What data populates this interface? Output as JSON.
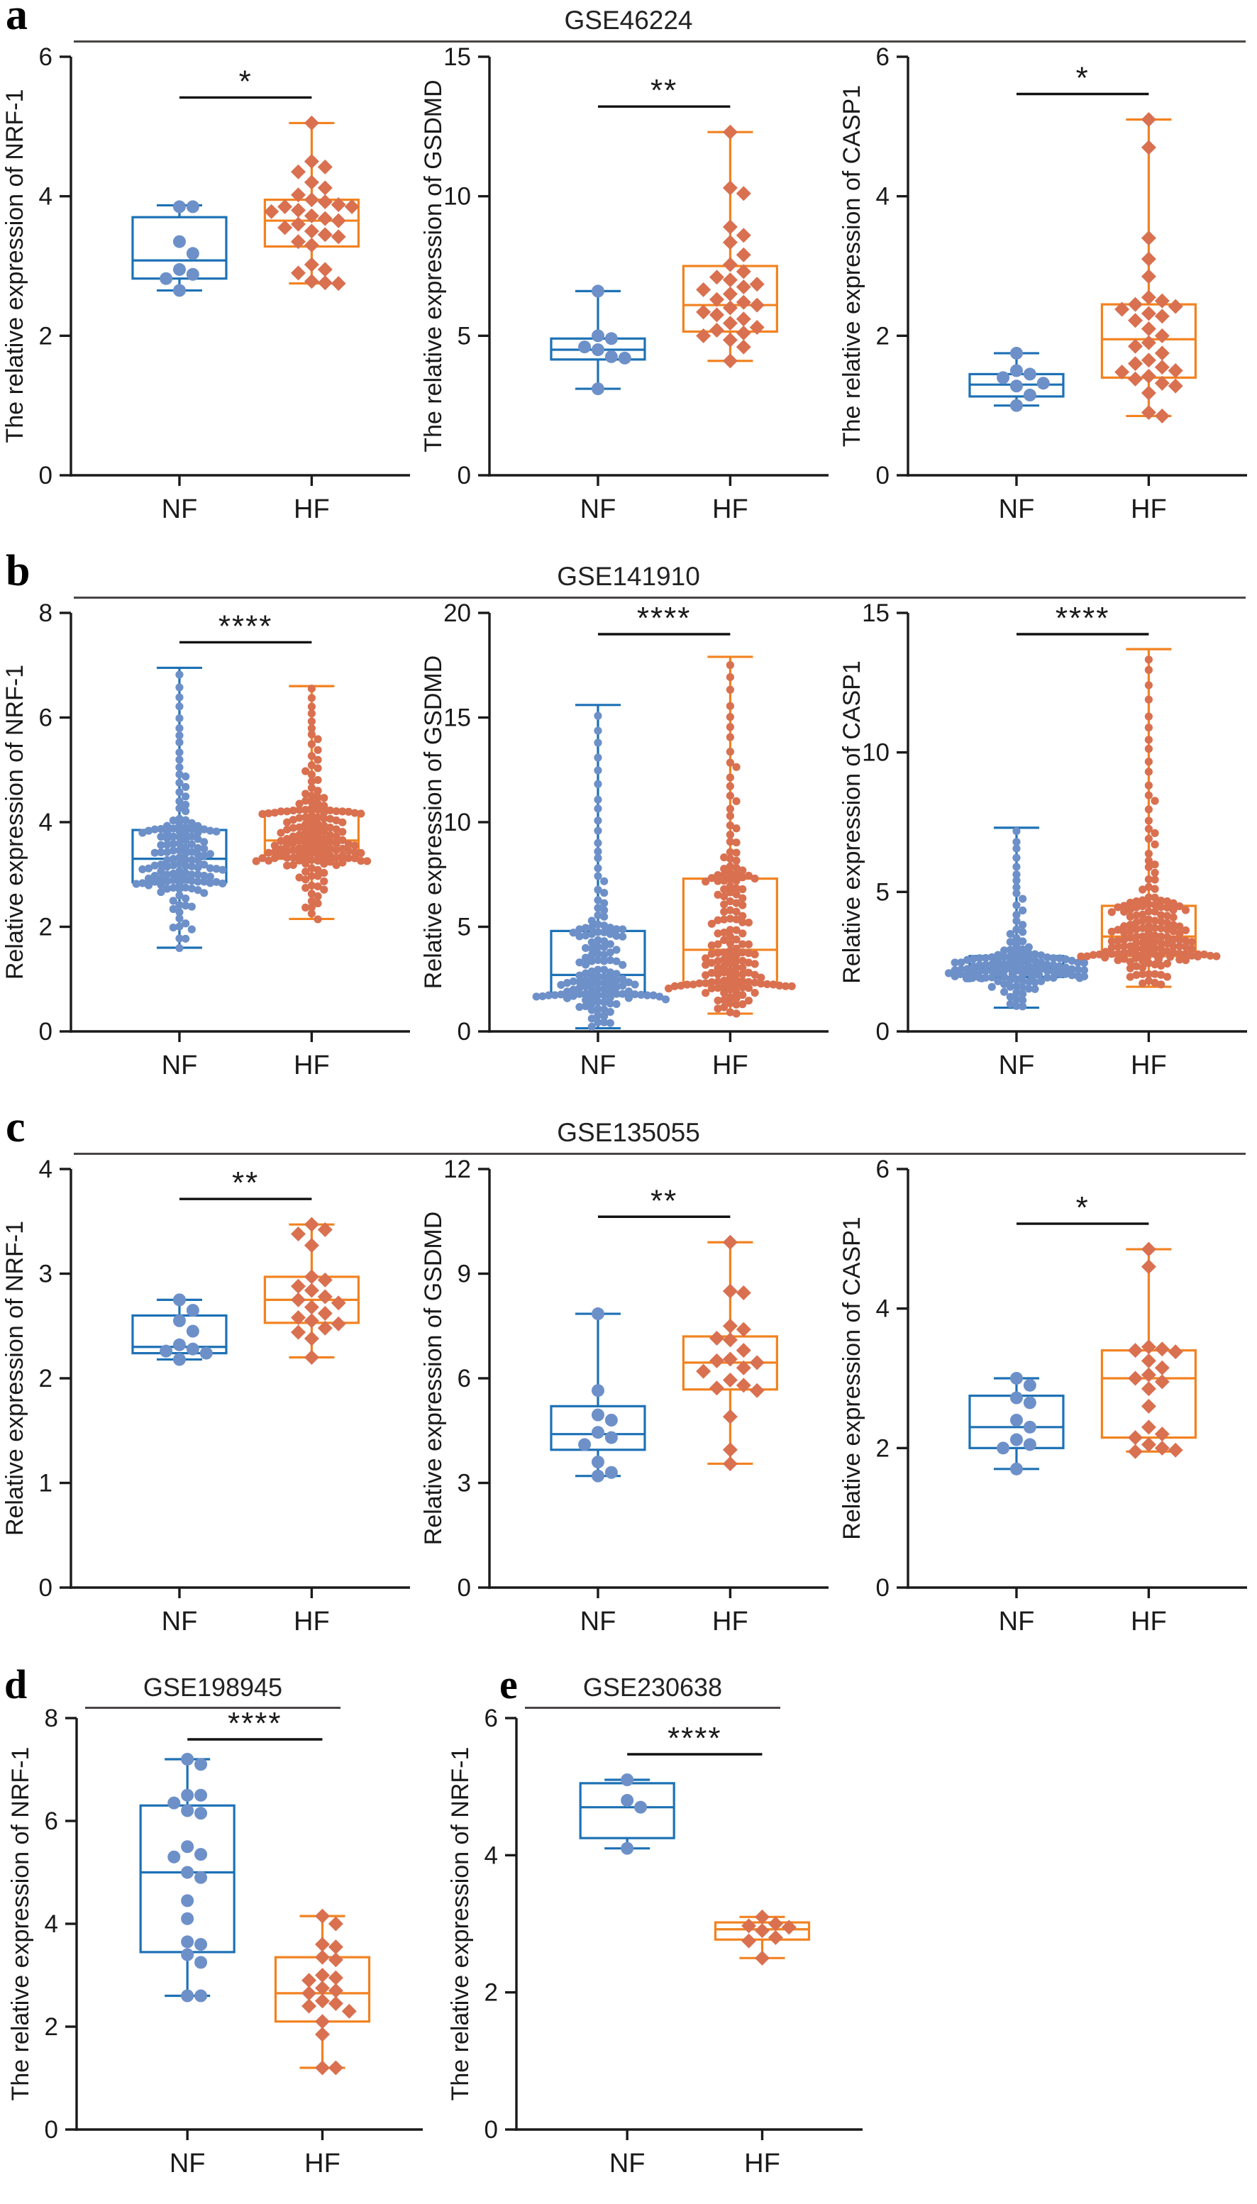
{
  "style": {
    "nf_color": "#1d71b5",
    "nf_point_color": "#6d90c9",
    "hf_color": "#f28220",
    "hf_point_color": "#d97050",
    "axis_color": "#1a1a1a",
    "rule_color": "#4a4545"
  },
  "chart_data": [
    {
      "panel": "a",
      "title": "GSE46224",
      "type": "box",
      "charts": [
        {
          "ylabel": "The relative expression of NRF-1",
          "ylim": [
            0,
            6
          ],
          "yticks": [
            0,
            2,
            4,
            6
          ],
          "significance": "*",
          "categories": [
            "NF",
            "HF"
          ],
          "groups": [
            {
              "name": "NF",
              "marker": "circle",
              "box": [
                2.65,
                2.82,
                3.08,
                3.7,
                3.87
              ],
              "points": [
                3.85,
                3.85,
                3.35,
                3.18,
                2.95,
                2.88,
                2.82,
                2.65
              ]
            },
            {
              "name": "HF",
              "marker": "diamond",
              "box": [
                2.75,
                3.28,
                3.65,
                3.95,
                5.05
              ],
              "points": [
                5.05,
                4.5,
                4.42,
                4.35,
                4.2,
                4.12,
                4.02,
                3.95,
                3.92,
                3.88,
                3.85,
                3.85,
                3.8,
                3.78,
                3.72,
                3.68,
                3.65,
                3.6,
                3.55,
                3.5,
                3.45,
                3.42,
                3.35,
                3.3,
                3.02,
                2.95,
                2.9,
                2.78,
                2.76,
                2.75
              ]
            }
          ]
        },
        {
          "ylabel": "The relative expression of GSDMD",
          "ylim": [
            0,
            15
          ],
          "yticks": [
            0,
            5,
            10,
            15
          ],
          "significance": "**",
          "categories": [
            "NF",
            "HF"
          ],
          "groups": [
            {
              "name": "NF",
              "marker": "circle",
              "box": [
                3.1,
                4.15,
                4.5,
                4.9,
                6.6
              ],
              "points": [
                6.6,
                5.0,
                4.9,
                4.6,
                4.5,
                4.25,
                4.2,
                3.1
              ]
            },
            {
              "name": "HF",
              "marker": "diamond",
              "box": [
                4.1,
                5.15,
                6.1,
                7.5,
                12.3
              ],
              "points": [
                12.3,
                10.3,
                10.1,
                8.9,
                8.6,
                8.35,
                7.9,
                7.55,
                7.3,
                7.1,
                7.0,
                6.85,
                6.75,
                6.65,
                6.5,
                6.3,
                6.2,
                6.1,
                6.0,
                5.85,
                5.75,
                5.6,
                5.45,
                5.3,
                5.2,
                5.1,
                5.0,
                4.85,
                4.6,
                4.1
              ]
            }
          ]
        },
        {
          "ylabel": "The relative expression of CASP1",
          "ylim": [
            0,
            6
          ],
          "yticks": [
            0,
            2,
            4,
            6
          ],
          "significance": "*",
          "categories": [
            "NF",
            "HF"
          ],
          "groups": [
            {
              "name": "NF",
              "marker": "circle",
              "box": [
                1.0,
                1.13,
                1.3,
                1.45,
                1.75
              ],
              "points": [
                1.75,
                1.5,
                1.45,
                1.4,
                1.32,
                1.28,
                1.15,
                1.0
              ]
            },
            {
              "name": "HF",
              "marker": "diamond",
              "box": [
                0.85,
                1.4,
                1.95,
                2.45,
                5.1
              ],
              "points": [
                5.1,
                4.7,
                3.4,
                3.1,
                2.85,
                2.55,
                2.5,
                2.45,
                2.42,
                2.38,
                2.32,
                2.28,
                2.22,
                2.1,
                2.0,
                1.9,
                1.85,
                1.75,
                1.65,
                1.6,
                1.55,
                1.5,
                1.48,
                1.42,
                1.38,
                1.32,
                1.28,
                1.18,
                0.9,
                0.85
              ]
            }
          ]
        }
      ]
    },
    {
      "panel": "b",
      "title": "GSE141910",
      "type": "box",
      "charts": [
        {
          "ylabel": "Relative expression of NRF-1",
          "ylim": [
            0,
            8
          ],
          "yticks": [
            0,
            2,
            4,
            6,
            8
          ],
          "significance": "****",
          "categories": [
            "NF",
            "HF"
          ],
          "groups": [
            {
              "name": "NF",
              "marker": "circle",
              "n": 140,
              "box": [
                1.6,
                2.85,
                3.3,
                3.85,
                6.95
              ]
            },
            {
              "name": "HF",
              "marker": "circle",
              "n": 160,
              "box": [
                2.15,
                3.3,
                3.65,
                4.2,
                6.6
              ]
            }
          ]
        },
        {
          "ylabel": "Relative expression of GSDMD",
          "ylim": [
            0,
            20
          ],
          "yticks": [
            0,
            5,
            10,
            15,
            20
          ],
          "significance": "****",
          "categories": [
            "NF",
            "HF"
          ],
          "groups": [
            {
              "name": "NF",
              "marker": "circle",
              "n": 140,
              "box": [
                0.15,
                1.7,
                2.7,
                4.8,
                15.6
              ]
            },
            {
              "name": "HF",
              "marker": "circle",
              "n": 160,
              "box": [
                0.85,
                2.3,
                3.9,
                7.3,
                17.9
              ]
            }
          ]
        },
        {
          "ylabel": "Relative expression of CASP1",
          "ylim": [
            0,
            15
          ],
          "yticks": [
            0,
            5,
            10,
            15
          ],
          "significance": "****",
          "categories": [
            "NF",
            "HF"
          ],
          "groups": [
            {
              "name": "NF",
              "marker": "circle",
              "n": 140,
              "box": [
                0.85,
                1.95,
                2.25,
                2.7,
                7.3
              ]
            },
            {
              "name": "HF",
              "marker": "circle",
              "n": 170,
              "box": [
                1.6,
                2.7,
                3.4,
                4.5,
                13.7
              ]
            }
          ]
        }
      ]
    },
    {
      "panel": "c",
      "title": "GSE135055",
      "type": "box",
      "charts": [
        {
          "ylabel": "Relative expression of NRF-1",
          "ylim": [
            0,
            4
          ],
          "yticks": [
            0,
            1,
            2,
            3,
            4
          ],
          "significance": "**",
          "categories": [
            "NF",
            "HF"
          ],
          "groups": [
            {
              "name": "NF",
              "marker": "circle",
              "box": [
                2.18,
                2.24,
                2.3,
                2.6,
                2.75
              ],
              "points": [
                2.75,
                2.65,
                2.55,
                2.45,
                2.32,
                2.28,
                2.26,
                2.24,
                2.18
              ]
            },
            {
              "name": "HF",
              "marker": "diamond",
              "box": [
                2.2,
                2.53,
                2.75,
                2.97,
                3.47
              ],
              "points": [
                3.47,
                3.42,
                3.38,
                3.27,
                2.97,
                2.94,
                2.88,
                2.84,
                2.78,
                2.75,
                2.72,
                2.68,
                2.62,
                2.58,
                2.55,
                2.52,
                2.48,
                2.44,
                2.38,
                2.2
              ]
            }
          ]
        },
        {
          "ylabel": "Relative expression of GSDMD",
          "ylim": [
            0,
            12
          ],
          "yticks": [
            0,
            3,
            6,
            9,
            12
          ],
          "significance": "**",
          "categories": [
            "NF",
            "HF"
          ],
          "groups": [
            {
              "name": "NF",
              "marker": "circle",
              "box": [
                3.2,
                3.95,
                4.4,
                5.2,
                7.85
              ],
              "points": [
                7.85,
                5.65,
                4.95,
                4.8,
                4.45,
                4.3,
                4.1,
                3.6,
                3.3,
                3.2
              ]
            },
            {
              "name": "HF",
              "marker": "diamond",
              "box": [
                3.55,
                5.68,
                6.45,
                7.2,
                9.9
              ],
              "points": [
                9.9,
                8.5,
                8.45,
                7.5,
                7.4,
                7.15,
                7.1,
                6.8,
                6.55,
                6.5,
                6.45,
                6.3,
                6.2,
                5.95,
                5.8,
                5.72,
                5.65,
                4.9,
                3.95,
                3.55
              ]
            }
          ]
        },
        {
          "ylabel": "Relative expression of CASP1",
          "ylim": [
            0,
            6
          ],
          "yticks": [
            0,
            2,
            4,
            6
          ],
          "significance": "*",
          "categories": [
            "NF",
            "HF"
          ],
          "groups": [
            {
              "name": "NF",
              "marker": "circle",
              "box": [
                1.7,
                2.0,
                2.3,
                2.75,
                3.0
              ],
              "points": [
                3.0,
                2.9,
                2.72,
                2.65,
                2.4,
                2.3,
                2.12,
                2.05,
                2.0,
                1.7
              ]
            },
            {
              "name": "HF",
              "marker": "diamond",
              "box": [
                1.95,
                2.15,
                3.0,
                3.4,
                4.85
              ],
              "points": [
                4.85,
                4.6,
                3.45,
                3.42,
                3.4,
                3.38,
                3.25,
                3.15,
                3.05,
                3.0,
                2.95,
                2.85,
                2.6,
                2.3,
                2.2,
                2.15,
                2.05,
                2.0,
                1.97,
                1.95
              ]
            }
          ]
        }
      ]
    },
    {
      "panel": "d",
      "title": "GSE198945",
      "type": "box",
      "charts": [
        {
          "ylabel": "The relative expression of NRF-1",
          "ylim": [
            0,
            8
          ],
          "yticks": [
            0,
            2,
            4,
            6,
            8
          ],
          "significance": "****",
          "categories": [
            "NF",
            "HF"
          ],
          "groups": [
            {
              "name": "NF",
              "marker": "circle",
              "box": [
                2.6,
                3.45,
                5.0,
                6.3,
                7.2
              ],
              "points": [
                7.2,
                7.1,
                6.5,
                6.5,
                6.35,
                6.2,
                6.15,
                5.5,
                5.35,
                5.3,
                5.0,
                4.9,
                4.45,
                4.1,
                3.65,
                3.6,
                3.4,
                3.25,
                2.6,
                2.6
              ]
            },
            {
              "name": "HF",
              "marker": "diamond",
              "box": [
                1.2,
                2.1,
                2.65,
                3.35,
                4.15
              ],
              "points": [
                4.15,
                4.0,
                3.6,
                3.55,
                3.35,
                3.3,
                3.0,
                2.95,
                2.9,
                2.75,
                2.7,
                2.65,
                2.5,
                2.45,
                2.4,
                2.3,
                2.1,
                1.85,
                1.2,
                1.2
              ]
            }
          ]
        }
      ]
    },
    {
      "panel": "e",
      "title": "GSE230638",
      "type": "box",
      "charts": [
        {
          "ylabel": "The relative expression of NRF-1",
          "ylim": [
            0,
            6
          ],
          "yticks": [
            0,
            2,
            4,
            6
          ],
          "significance": "****",
          "categories": [
            "NF",
            "HF"
          ],
          "groups": [
            {
              "name": "NF",
              "marker": "circle",
              "box": [
                4.1,
                4.25,
                4.7,
                5.05,
                5.1
              ],
              "points": [
                5.1,
                4.8,
                4.7,
                4.1
              ]
            },
            {
              "name": "HF",
              "marker": "diamond",
              "box": [
                2.5,
                2.77,
                2.92,
                3.02,
                3.1
              ],
              "points": [
                3.1,
                3.0,
                2.97,
                2.95,
                2.9,
                2.8,
                2.75,
                2.5
              ]
            }
          ]
        }
      ]
    }
  ]
}
